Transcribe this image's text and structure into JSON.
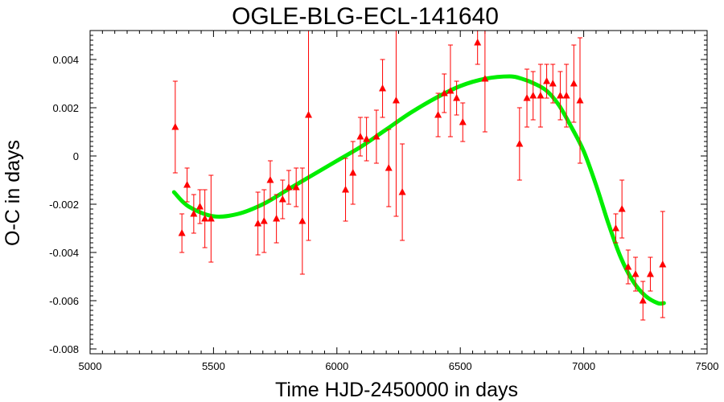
{
  "chart_data": {
    "type": "scatter",
    "title": "OGLE-BLG-ECL-141640",
    "xlabel": "Time HJD-2450000 in days",
    "ylabel": "O-C in days",
    "xlim": [
      5000,
      7500
    ],
    "ylim": [
      -0.0082,
      0.0052
    ],
    "x_ticks": [
      5000,
      5500,
      6000,
      6500,
      7000,
      7500
    ],
    "x_tick_labels": [
      "5000",
      "5500",
      "6000",
      "6500",
      "7000",
      "7500"
    ],
    "y_ticks": [
      0.004,
      0.002,
      0,
      -0.002,
      -0.004,
      -0.006,
      -0.008
    ],
    "y_tick_labels": [
      "0.004",
      "0.002",
      "0",
      "-0.002",
      "-0.004",
      "-0.006",
      "-0.008"
    ],
    "grid": false,
    "colors": {
      "points": "#ff0000",
      "fit": "#00ee00",
      "axes": "#000000"
    },
    "series": [
      {
        "marker": "triangle",
        "points": [
          {
            "x": 5345,
            "y": 0.0012,
            "err": 0.0019
          },
          {
            "x": 5372,
            "y": -0.0032,
            "err": 0.0008
          },
          {
            "x": 5393,
            "y": -0.0012,
            "err": 0.0007
          },
          {
            "x": 5420,
            "y": -0.0024,
            "err": 0.0008
          },
          {
            "x": 5445,
            "y": -0.0021,
            "err": 0.0007
          },
          {
            "x": 5465,
            "y": -0.0026,
            "err": 0.0012
          },
          {
            "x": 5490,
            "y": -0.0026,
            "err": 0.0018
          },
          {
            "x": 5680,
            "y": -0.0028,
            "err": 0.0013
          },
          {
            "x": 5705,
            "y": -0.0027,
            "err": 0.0013
          },
          {
            "x": 5730,
            "y": -0.001,
            "err": 0.0008
          },
          {
            "x": 5755,
            "y": -0.0026,
            "err": 0.001
          },
          {
            "x": 5780,
            "y": -0.0018,
            "err": 0.0008
          },
          {
            "x": 5805,
            "y": -0.0013,
            "err": 0.0007
          },
          {
            "x": 5835,
            "y": -0.0013,
            "err": 0.0008
          },
          {
            "x": 5860,
            "y": -0.0027,
            "err": 0.0022
          },
          {
            "x": 5885,
            "y": 0.0017,
            "err": 0.0052
          },
          {
            "x": 6035,
            "y": -0.0014,
            "err": 0.0013
          },
          {
            "x": 6065,
            "y": -0.0007,
            "err": 0.0013
          },
          {
            "x": 6095,
            "y": 0.0008,
            "err": 0.0008
          },
          {
            "x": 6120,
            "y": 0.0007,
            "err": 0.0009
          },
          {
            "x": 6160,
            "y": 0.0008,
            "err": 0.0011
          },
          {
            "x": 6185,
            "y": 0.0028,
            "err": 0.0012
          },
          {
            "x": 6210,
            "y": -0.0005,
            "err": 0.0016
          },
          {
            "x": 6240,
            "y": 0.0023,
            "err": 0.0048
          },
          {
            "x": 6265,
            "y": -0.0015,
            "err": 0.002
          },
          {
            "x": 6410,
            "y": 0.0017,
            "err": 0.0009
          },
          {
            "x": 6435,
            "y": 0.0026,
            "err": 0.0008
          },
          {
            "x": 6460,
            "y": 0.0027,
            "err": 0.0019
          },
          {
            "x": 6485,
            "y": 0.0024,
            "err": 0.0007
          },
          {
            "x": 6510,
            "y": 0.0014,
            "err": 0.0008
          },
          {
            "x": 6570,
            "y": 0.0047,
            "err": 0.0009
          },
          {
            "x": 6600,
            "y": 0.0032,
            "err": 0.0022
          },
          {
            "x": 6740,
            "y": 0.0005,
            "err": 0.0015
          },
          {
            "x": 6770,
            "y": 0.0024,
            "err": 0.0012
          },
          {
            "x": 6795,
            "y": 0.0025,
            "err": 0.001
          },
          {
            "x": 6825,
            "y": 0.0025,
            "err": 0.0013
          },
          {
            "x": 6850,
            "y": 0.0031,
            "err": 0.0007
          },
          {
            "x": 6875,
            "y": 0.003,
            "err": 0.0008
          },
          {
            "x": 6905,
            "y": 0.0025,
            "err": 0.001
          },
          {
            "x": 6930,
            "y": 0.0025,
            "err": 0.0013
          },
          {
            "x": 6960,
            "y": 0.003,
            "err": 0.0016
          },
          {
            "x": 6985,
            "y": 0.0023,
            "err": 0.0026
          },
          {
            "x": 7130,
            "y": -0.003,
            "err": 0.0006
          },
          {
            "x": 7155,
            "y": -0.0022,
            "err": 0.0012
          },
          {
            "x": 7180,
            "y": -0.0046,
            "err": 0.0007
          },
          {
            "x": 7210,
            "y": -0.0049,
            "err": 0.0007
          },
          {
            "x": 7240,
            "y": -0.006,
            "err": 0.0008
          },
          {
            "x": 7270,
            "y": -0.0049,
            "err": 0.0007
          },
          {
            "x": 7320,
            "y": -0.0045,
            "err": 0.0022
          }
        ]
      },
      {
        "type": "line",
        "x": [
          5340,
          5400,
          5500,
          5600,
          5700,
          5800,
          5900,
          6000,
          6100,
          6200,
          6300,
          6400,
          6500,
          6600,
          6700,
          6750,
          6800,
          6850,
          6900,
          6950,
          7000,
          7050,
          7100,
          7150,
          7200,
          7250,
          7300,
          7325
        ],
        "y": [
          -0.0015,
          -0.0021,
          -0.0025,
          -0.0024,
          -0.002,
          -0.0014,
          -0.0008,
          -0.0002,
          0.0004,
          0.0011,
          0.0018,
          0.0024,
          0.0029,
          0.0032,
          0.0033,
          0.0032,
          0.003,
          0.0027,
          0.0021,
          0.0012,
          0.0002,
          -0.0012,
          -0.0028,
          -0.0042,
          -0.0052,
          -0.0058,
          -0.0061,
          -0.0061
        ]
      }
    ]
  }
}
